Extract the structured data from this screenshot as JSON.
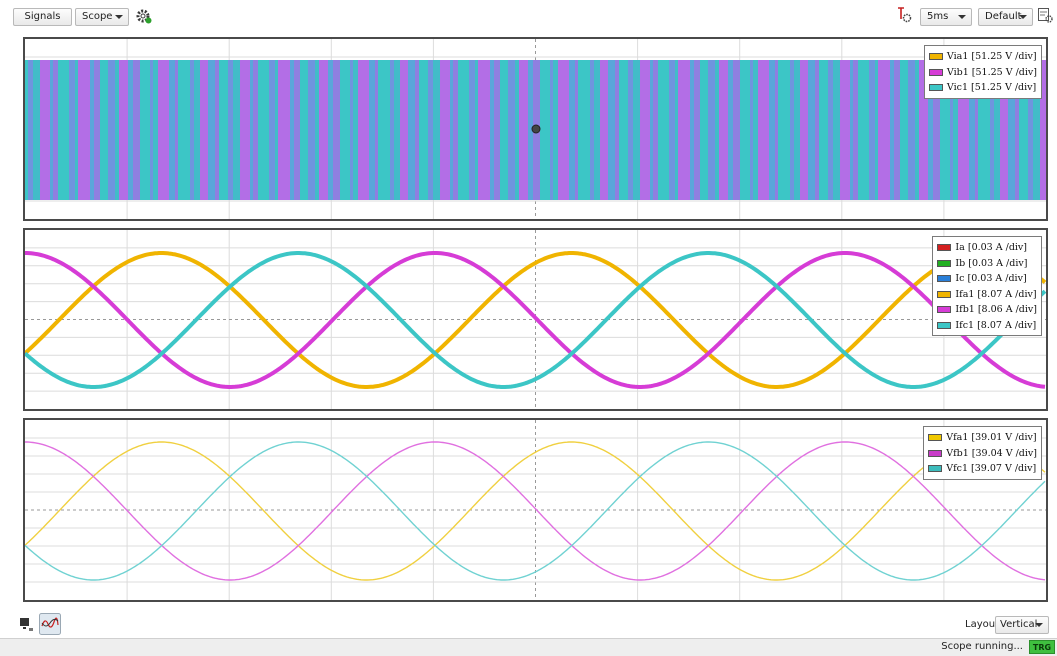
{
  "toolbar": {
    "signals_label": "Signals",
    "scope_select": "Scope",
    "time_select": "5ms",
    "preset_select": "Default",
    "icons": [
      "settings-gear-icon",
      "trigger-settings-icon",
      "display-settings-icon"
    ]
  },
  "panels": [
    {
      "legend": [
        {
          "label": "Via1 [51.25 V /div]",
          "color": "#f0b400"
        },
        {
          "label": "Vib1 [51.25 V /div]",
          "color": "#d63cd6"
        },
        {
          "label": "Vic1 [51.25 V /div]",
          "color": "#3cc6c6"
        }
      ]
    },
    {
      "legend": [
        {
          "label": "Ia [0.03 A /div]",
          "color": "#d42020"
        },
        {
          "label": "Ib [0.03 A /div]",
          "color": "#22b022"
        },
        {
          "label": "Ic [0.03 A /div]",
          "color": "#2a7fd8"
        },
        {
          "label": "Ifa1 [8.07 A /div]",
          "color": "#f0b400"
        },
        {
          "label": "Ifb1 [8.06 A /div]",
          "color": "#d63cd6"
        },
        {
          "label": "Ifc1 [8.07 A /div]",
          "color": "#3cc6c6"
        }
      ]
    },
    {
      "legend": [
        {
          "label": "Vfa1 [39.01 V /div]",
          "color": "#f0c800"
        },
        {
          "label": "Vfb1 [39.04 V /div]",
          "color": "#c83cc8"
        },
        {
          "label": "Vfc1 [39.07 V /div]",
          "color": "#3cbcbc"
        }
      ]
    }
  ],
  "bottom": {
    "layout_label": "Layout",
    "layout_select": "Vertical",
    "icons": [
      "chart-view-icon",
      "waveform-view-icon"
    ]
  },
  "status": {
    "text": "Scope running...",
    "trg": "TRG"
  }
}
